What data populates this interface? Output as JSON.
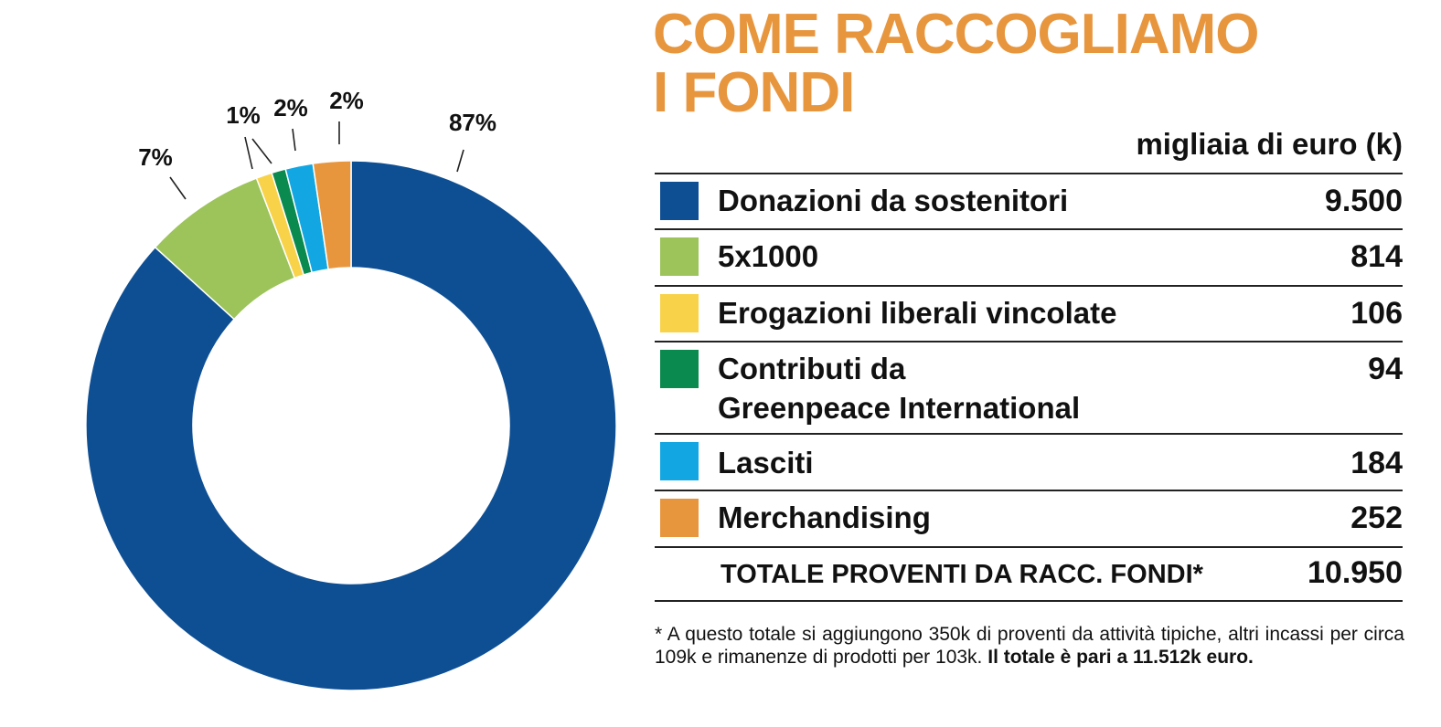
{
  "title_lines": [
    "COME RACCOGLIAMO",
    "I FONDI"
  ],
  "unit_label": "migliaia di euro (k)",
  "chart_data": {
    "type": "pie",
    "style": "donut",
    "categories": [
      "Donazioni da sostenitori",
      "5x1000",
      "Erogazioni liberali vincolate",
      "Contributi da Greenpeace International",
      "Lasciti",
      "Merchandising"
    ],
    "values": [
      9500,
      814,
      106,
      94,
      184,
      252
    ],
    "percent_labels": [
      "87%",
      "7%",
      "1%",
      "",
      "2%",
      "2%"
    ],
    "colors": [
      "#0E4F94",
      "#9CC45A",
      "#F8D34A",
      "#0A8A4E",
      "#12A7E2",
      "#E8963E"
    ]
  },
  "table": {
    "rows": [
      {
        "label_lines": [
          "Donazioni da sostenitori"
        ],
        "value": "9.500",
        "color": "#0E4F94"
      },
      {
        "label_lines": [
          "5x1000"
        ],
        "value": "814",
        "color": "#9CC45A"
      },
      {
        "label_lines": [
          "Erogazioni liberali vincolate"
        ],
        "value": "106",
        "color": "#F8D34A"
      },
      {
        "label_lines": [
          "Contributi da",
          "Greenpeace International"
        ],
        "value": "94",
        "color": "#0A8A4E"
      },
      {
        "label_lines": [
          "Lasciti"
        ],
        "value": "184",
        "color": "#12A7E2"
      },
      {
        "label_lines": [
          "Merchandising"
        ],
        "value": "252",
        "color": "#E8963E"
      }
    ],
    "total_label": "TOTALE PROVENTI DA RACC. FONDI*",
    "total_value": "10.950"
  },
  "footnote": {
    "text": "* A questo totale si aggiungono 350k di proventi da attività tipiche, altri incassi per circa 109k e rimanenze di prodotti per 103k.",
    "bold": "Il totale è pari a 11.512k euro."
  }
}
